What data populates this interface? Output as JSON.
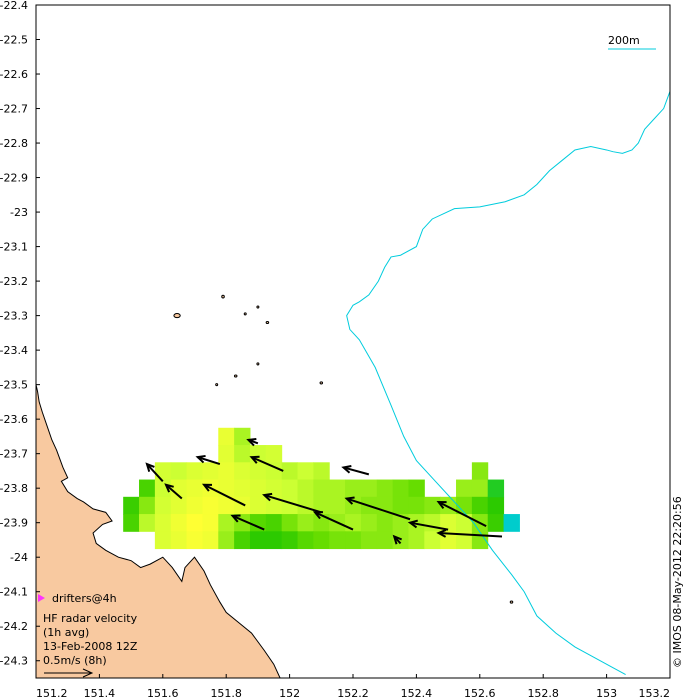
{
  "map": {
    "lon_range": [
      151.2,
      153.2
    ],
    "lat_range": [
      -24.35,
      -22.4
    ],
    "x_ticks": [
      "151.2",
      "151.4",
      "151.6",
      "151.8",
      "152",
      "152.2",
      "152.4",
      "152.6",
      "152.8",
      "153",
      "153.2"
    ],
    "y_ticks": [
      "-22.4",
      "-22.5",
      "-22.6",
      "-22.7",
      "-22.8",
      "-22.9",
      "-23",
      "-23.1",
      "-23.2",
      "-23.3",
      "-23.4",
      "-23.5",
      "-23.6",
      "-23.7",
      "-23.8",
      "-23.9",
      "-24",
      "-24.1",
      "-24.2",
      "-24.3"
    ]
  },
  "scale": {
    "label": "200m"
  },
  "legend": {
    "drifters": "drifters@4h",
    "radar_title": "HF radar velocity",
    "radar_avg": "(1h avg)",
    "date": "13-Feb-2008 12Z",
    "ref_arrow": "0.5m/s (8h)"
  },
  "credit": "© IMOS 08-May-2012 22:20:56",
  "colors": {
    "land": "#F8C9A0",
    "isobath": "#00CCDD",
    "drifter_marker": "#FF33FF",
    "velocity_low": "#FFFF33",
    "velocity_high": "#00AA00"
  },
  "isobath_200m": [
    [
      153.2,
      -22.65
    ],
    [
      153.18,
      -22.7
    ],
    [
      153.15,
      -22.73
    ],
    [
      153.12,
      -22.76
    ],
    [
      153.1,
      -22.8
    ],
    [
      153.08,
      -22.82
    ],
    [
      153.05,
      -22.83
    ],
    [
      153.02,
      -22.825
    ],
    [
      153.0,
      -22.82
    ],
    [
      152.95,
      -22.81
    ],
    [
      152.9,
      -22.82
    ],
    [
      152.86,
      -22.85
    ],
    [
      152.82,
      -22.88
    ],
    [
      152.78,
      -22.92
    ],
    [
      152.74,
      -22.95
    ],
    [
      152.68,
      -22.97
    ],
    [
      152.6,
      -22.985
    ],
    [
      152.52,
      -22.99
    ],
    [
      152.45,
      -23.02
    ],
    [
      152.42,
      -23.05
    ],
    [
      152.4,
      -23.1
    ],
    [
      152.35,
      -23.125
    ],
    [
      152.32,
      -23.13
    ],
    [
      152.3,
      -23.16
    ],
    [
      152.28,
      -23.2
    ],
    [
      152.25,
      -23.24
    ],
    [
      152.22,
      -23.26
    ],
    [
      152.2,
      -23.27
    ],
    [
      152.18,
      -23.3
    ],
    [
      152.19,
      -23.34
    ],
    [
      152.22,
      -23.37
    ],
    [
      152.27,
      -23.45
    ],
    [
      152.32,
      -23.56
    ],
    [
      152.36,
      -23.65
    ],
    [
      152.4,
      -23.72
    ],
    [
      152.46,
      -23.78
    ],
    [
      152.52,
      -23.84
    ],
    [
      152.58,
      -23.9
    ],
    [
      152.64,
      -23.98
    ],
    [
      152.7,
      -24.05
    ],
    [
      152.74,
      -24.1
    ],
    [
      152.78,
      -24.17
    ],
    [
      152.84,
      -24.22
    ],
    [
      152.9,
      -24.26
    ],
    [
      152.96,
      -24.29
    ],
    [
      153.02,
      -24.32
    ],
    [
      153.06,
      -24.34
    ]
  ],
  "land_polygon": [
    [
      151.2,
      -23.5
    ],
    [
      151.205,
      -23.52
    ],
    [
      151.21,
      -23.55
    ],
    [
      151.22,
      -23.58
    ],
    [
      151.235,
      -23.62
    ],
    [
      151.25,
      -23.66
    ],
    [
      151.265,
      -23.69
    ],
    [
      151.285,
      -23.74
    ],
    [
      151.3,
      -23.77
    ],
    [
      151.28,
      -23.78
    ],
    [
      151.3,
      -23.81
    ],
    [
      151.33,
      -23.83
    ],
    [
      151.35,
      -23.84
    ],
    [
      151.38,
      -23.86
    ],
    [
      151.42,
      -23.87
    ],
    [
      151.44,
      -23.895
    ],
    [
      151.41,
      -23.905
    ],
    [
      151.38,
      -23.93
    ],
    [
      151.39,
      -23.96
    ],
    [
      151.42,
      -23.98
    ],
    [
      151.46,
      -24.0
    ],
    [
      151.5,
      -24.01
    ],
    [
      151.53,
      -24.03
    ],
    [
      151.56,
      -24.02
    ],
    [
      151.6,
      -24.0
    ],
    [
      151.63,
      -24.03
    ],
    [
      151.66,
      -24.07
    ],
    [
      151.67,
      -24.03
    ],
    [
      151.7,
      -24.0
    ],
    [
      151.73,
      -24.04
    ],
    [
      151.75,
      -24.08
    ],
    [
      151.78,
      -24.13
    ],
    [
      151.8,
      -24.16
    ],
    [
      151.84,
      -24.19
    ],
    [
      151.88,
      -24.22
    ],
    [
      151.92,
      -24.27
    ],
    [
      151.95,
      -24.31
    ],
    [
      151.97,
      -24.35
    ],
    [
      151.2,
      -24.35
    ]
  ],
  "islands": [
    [
      151.645,
      -23.3,
      0.01,
      0.006
    ],
    [
      151.79,
      -23.245,
      0.004,
      0.004
    ],
    [
      151.86,
      -23.295,
      0.003,
      0.003
    ],
    [
      151.9,
      -23.275,
      0.003,
      0.003
    ],
    [
      151.93,
      -23.32,
      0.004,
      0.003
    ],
    [
      151.9,
      -23.44,
      0.003,
      0.003
    ],
    [
      151.83,
      -23.475,
      0.004,
      0.003
    ],
    [
      151.77,
      -23.5,
      0.003,
      0.003
    ],
    [
      152.1,
      -23.495,
      0.004,
      0.003
    ],
    [
      152.7,
      -24.13,
      0.004,
      0.003
    ]
  ],
  "chart_data": {
    "type": "heatmap",
    "title": "HF radar velocity (1h avg) 13-Feb-2008 12Z",
    "cells": [
      [
        151.8,
        -23.65,
        0.15
      ],
      [
        151.85,
        -23.65,
        0.45
      ],
      [
        151.8,
        -23.7,
        0.2
      ],
      [
        151.85,
        -23.7,
        0.4
      ],
      [
        151.9,
        -23.7,
        0.35
      ],
      [
        151.95,
        -23.7,
        0.3
      ],
      [
        151.6,
        -23.75,
        0.3
      ],
      [
        151.65,
        -23.75,
        0.35
      ],
      [
        151.7,
        -23.75,
        0.25
      ],
      [
        151.75,
        -23.75,
        0.2
      ],
      [
        151.8,
        -23.75,
        0.15
      ],
      [
        151.85,
        -23.75,
        0.25
      ],
      [
        151.9,
        -23.75,
        0.3
      ],
      [
        151.95,
        -23.75,
        0.35
      ],
      [
        152.0,
        -23.75,
        0.4
      ],
      [
        152.05,
        -23.75,
        0.35
      ],
      [
        152.1,
        -23.75,
        0.4
      ],
      [
        152.6,
        -23.75,
        0.55
      ],
      [
        151.55,
        -23.8,
        0.75
      ],
      [
        151.6,
        -23.8,
        0.35
      ],
      [
        151.65,
        -23.8,
        0.2
      ],
      [
        151.7,
        -23.8,
        0.15
      ],
      [
        151.75,
        -23.8,
        0.1
      ],
      [
        151.8,
        -23.8,
        0.15
      ],
      [
        151.85,
        -23.8,
        0.2
      ],
      [
        151.9,
        -23.8,
        0.25
      ],
      [
        151.95,
        -23.8,
        0.3
      ],
      [
        152.0,
        -23.8,
        0.35
      ],
      [
        152.05,
        -23.8,
        0.4
      ],
      [
        152.1,
        -23.8,
        0.45
      ],
      [
        152.15,
        -23.8,
        0.45
      ],
      [
        152.2,
        -23.8,
        0.5
      ],
      [
        152.25,
        -23.8,
        0.5
      ],
      [
        152.3,
        -23.8,
        0.55
      ],
      [
        152.35,
        -23.8,
        0.6
      ],
      [
        152.4,
        -23.8,
        0.65
      ],
      [
        152.55,
        -23.8,
        0.5
      ],
      [
        152.6,
        -23.8,
        0.5
      ],
      [
        151.5,
        -23.85,
        0.8
      ],
      [
        151.55,
        -23.85,
        0.55
      ],
      [
        151.6,
        -23.85,
        0.3
      ],
      [
        151.65,
        -23.85,
        0.2
      ],
      [
        151.7,
        -23.85,
        0.1
      ],
      [
        151.75,
        -23.85,
        0.05
      ],
      [
        151.8,
        -23.85,
        0.1
      ],
      [
        151.85,
        -23.85,
        0.15
      ],
      [
        151.9,
        -23.85,
        0.25
      ],
      [
        151.95,
        -23.85,
        0.3
      ],
      [
        152.0,
        -23.85,
        0.35
      ],
      [
        152.05,
        -23.85,
        0.4
      ],
      [
        152.1,
        -23.85,
        0.45
      ],
      [
        152.15,
        -23.85,
        0.45
      ],
      [
        152.2,
        -23.85,
        0.5
      ],
      [
        152.25,
        -23.85,
        0.55
      ],
      [
        152.3,
        -23.85,
        0.55
      ],
      [
        152.35,
        -23.85,
        0.6
      ],
      [
        152.4,
        -23.85,
        0.6
      ],
      [
        152.45,
        -23.85,
        0.55
      ],
      [
        152.5,
        -23.85,
        0.5
      ],
      [
        152.55,
        -23.85,
        0.6
      ],
      [
        152.6,
        -23.85,
        0.75
      ],
      [
        152.65,
        -23.85,
        0.85
      ],
      [
        151.5,
        -23.9,
        0.75
      ],
      [
        151.55,
        -23.9,
        0.4
      ],
      [
        151.6,
        -23.9,
        0.25
      ],
      [
        151.65,
        -23.9,
        0.1
      ],
      [
        151.7,
        -23.9,
        0.0
      ],
      [
        151.75,
        -23.9,
        0.05
      ],
      [
        151.8,
        -23.9,
        0.45
      ],
      [
        151.85,
        -23.9,
        0.55
      ],
      [
        151.9,
        -23.9,
        0.7
      ],
      [
        151.95,
        -23.9,
        0.75
      ],
      [
        152.0,
        -23.9,
        0.6
      ],
      [
        152.05,
        -23.9,
        0.5
      ],
      [
        152.1,
        -23.9,
        0.55
      ],
      [
        152.15,
        -23.9,
        0.5
      ],
      [
        152.2,
        -23.9,
        0.45
      ],
      [
        152.25,
        -23.9,
        0.5
      ],
      [
        152.3,
        -23.9,
        0.55
      ],
      [
        152.35,
        -23.9,
        0.5
      ],
      [
        152.4,
        -23.9,
        0.45
      ],
      [
        152.45,
        -23.9,
        0.4
      ],
      [
        152.5,
        -23.9,
        0.25
      ],
      [
        152.55,
        -23.9,
        0.35
      ],
      [
        152.6,
        -23.9,
        0.55
      ],
      [
        152.65,
        -23.9,
        0.8
      ],
      [
        151.6,
        -23.95,
        0.25
      ],
      [
        151.65,
        -23.95,
        0.15
      ],
      [
        151.7,
        -23.95,
        0.05
      ],
      [
        151.75,
        -23.95,
        0.1
      ],
      [
        151.8,
        -23.95,
        0.5
      ],
      [
        151.85,
        -23.95,
        0.75
      ],
      [
        151.9,
        -23.95,
        0.85
      ],
      [
        151.95,
        -23.95,
        0.85
      ],
      [
        152.0,
        -23.95,
        0.8
      ],
      [
        152.05,
        -23.95,
        0.7
      ],
      [
        152.1,
        -23.95,
        0.65
      ],
      [
        152.15,
        -23.95,
        0.6
      ],
      [
        152.2,
        -23.95,
        0.6
      ],
      [
        152.25,
        -23.95,
        0.55
      ],
      [
        152.3,
        -23.95,
        0.55
      ],
      [
        152.35,
        -23.95,
        0.5
      ],
      [
        152.4,
        -23.95,
        0.45
      ],
      [
        152.45,
        -23.95,
        0.35
      ],
      [
        152.5,
        -23.95,
        0.2
      ],
      [
        152.55,
        -23.95,
        0.3
      ],
      [
        152.6,
        -23.95,
        0.55
      ]
    ],
    "special_cells": [
      [
        152.65,
        -23.8,
        "#22CC22"
      ],
      [
        152.7,
        -23.9,
        "#00CCCC"
      ]
    ],
    "vectors": [
      [
        151.6,
        -23.78,
        -0.05,
        0.05
      ],
      [
        151.78,
        -23.73,
        -0.07,
        0.02
      ],
      [
        151.98,
        -23.75,
        -0.1,
        0.04
      ],
      [
        152.25,
        -23.76,
        -0.08,
        0.02
      ],
      [
        151.66,
        -23.83,
        -0.05,
        0.04
      ],
      [
        151.86,
        -23.85,
        -0.13,
        0.06
      ],
      [
        152.1,
        -23.87,
        -0.18,
        0.05
      ],
      [
        152.38,
        -23.89,
        -0.2,
        0.06
      ],
      [
        152.62,
        -23.91,
        -0.15,
        0.07
      ],
      [
        152.67,
        -23.94,
        -0.2,
        0.01
      ],
      [
        151.92,
        -23.92,
        -0.1,
        0.04
      ],
      [
        152.2,
        -23.92,
        -0.12,
        0.05
      ],
      [
        152.5,
        -23.92,
        -0.12,
        0.02
      ],
      [
        151.9,
        -23.67,
        -0.03,
        0.01
      ],
      [
        152.35,
        -23.96,
        -0.02,
        0.02
      ]
    ],
    "drifter": [
      151.22,
      -24.12
    ]
  }
}
